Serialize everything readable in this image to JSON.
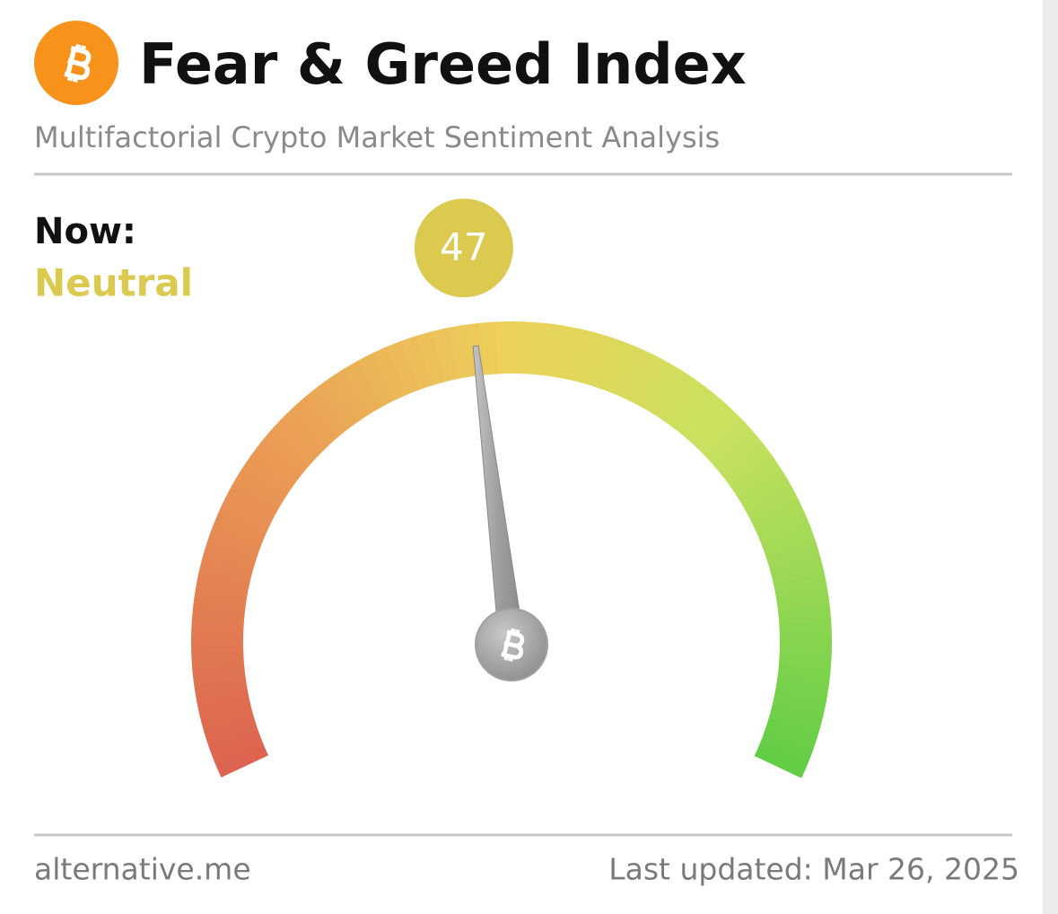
{
  "header": {
    "title": "Fear & Greed Index",
    "subtitle": "Multifactorial Crypto Market Sentiment Analysis"
  },
  "chart_data": {
    "type": "gauge",
    "label": "Now:",
    "classification": "Neutral",
    "value": 47,
    "ylim": [
      0,
      100
    ],
    "color": "#dcc94f"
  },
  "footer": {
    "source": "alternative.me",
    "updated": "Last updated: Mar 26, 2025"
  }
}
